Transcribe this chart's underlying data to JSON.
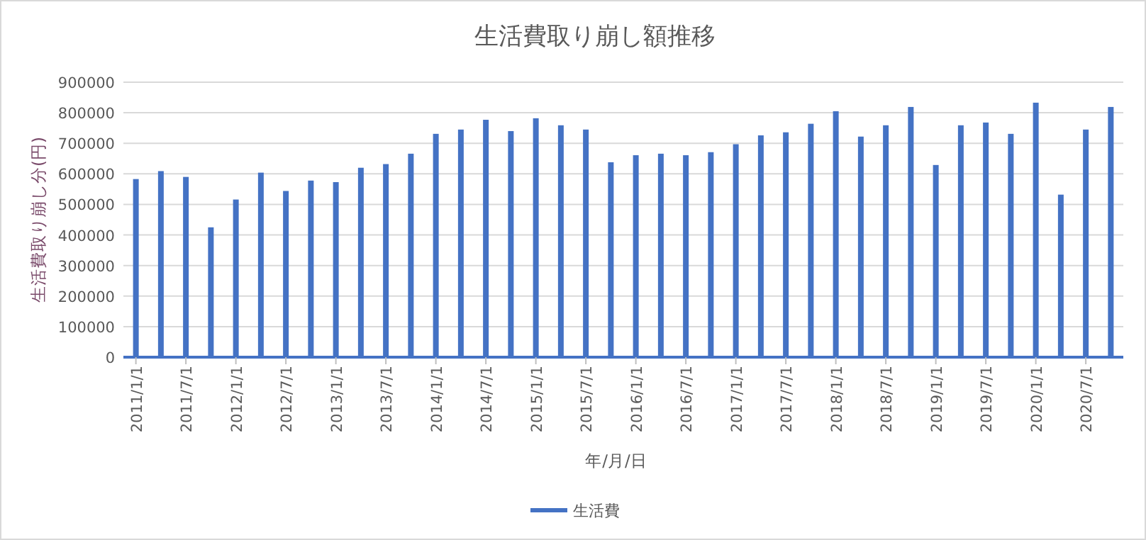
{
  "chart_data": {
    "type": "bar",
    "title": "生活費取り崩し額推移",
    "xlabel": "年/月/日",
    "ylabel": "生活費取り崩し分(円)",
    "categories": [
      "2011/1/1",
      null,
      "2011/7/1",
      null,
      "2012/1/1",
      null,
      "2012/7/1",
      null,
      "2013/1/1",
      null,
      "2013/7/1",
      null,
      "2014/1/1",
      null,
      "2014/7/1",
      null,
      "2015/1/1",
      null,
      "2015/7/1",
      null,
      "2016/1/1",
      null,
      "2016/7/1",
      null,
      "2017/1/1",
      null,
      "2017/7/1",
      null,
      "2018/1/1",
      null,
      "2018/7/1",
      null,
      "2019/1/1",
      null,
      "2019/7/1",
      null,
      "2020/1/1",
      null,
      "2020/7/1",
      null
    ],
    "series": [
      {
        "name": "生活費",
        "color": "#4472c4",
        "values": [
          583000,
          609000,
          590000,
          425000,
          516000,
          604000,
          544000,
          578000,
          573000,
          620000,
          632000,
          666000,
          731000,
          745000,
          777000,
          740000,
          782000,
          759000,
          745000,
          638000,
          661000,
          666000,
          661000,
          671000,
          697000,
          726000,
          736000,
          764000,
          805000,
          722000,
          759000,
          819000,
          629000,
          759000,
          768000,
          731000,
          833000,
          532000,
          745000,
          819000
        ]
      }
    ],
    "ylim": [
      0,
      900000
    ],
    "yticks": [
      0,
      100000,
      200000,
      300000,
      400000,
      500000,
      600000,
      700000,
      800000,
      900000
    ],
    "grid": "y",
    "legend": "bottom"
  }
}
